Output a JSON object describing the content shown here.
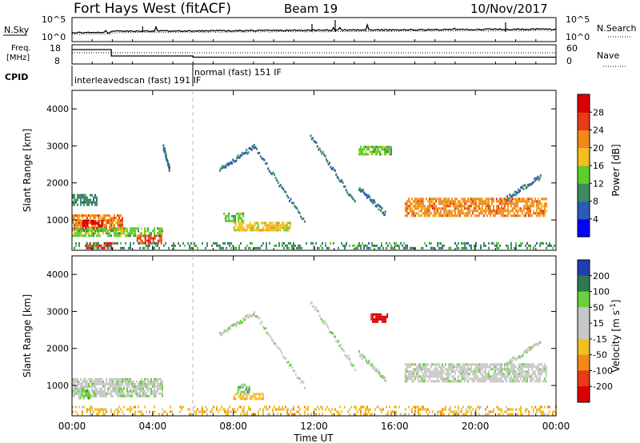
{
  "header": {
    "title": "Fort Hays West (fitACF)",
    "beam": "Beam 19",
    "date": "10/Nov/2017"
  },
  "top_panels": {
    "nsky_label": "N.Sky",
    "nsky_ticks": [
      "10^5",
      "10^0"
    ],
    "nsearch_label": "N.Search",
    "nsearch_ticks": [
      "10^5",
      "10^0"
    ],
    "freq_label_1": "Freq.",
    "freq_label_2": "[MHz]",
    "freq_ticks": [
      "18",
      "8"
    ],
    "nave_label": "Nave",
    "nave_ticks": [
      "60",
      "0"
    ],
    "cpid_label": "CPID",
    "cpid_entries": [
      {
        "text": "interleavedscan (fast)  191  IF",
        "start_hour": 0
      },
      {
        "text": "normal (fast)  151  IF",
        "start_hour": 6
      }
    ]
  },
  "x_axis": {
    "label": "Time UT",
    "ticks": [
      "00:00",
      "04:00",
      "08:00",
      "12:00",
      "16:00",
      "20:00",
      "00:00"
    ],
    "range_hours": [
      0,
      24
    ]
  },
  "chart_data": [
    {
      "type": "heatmap",
      "name": "power",
      "ylabel": "Slant Range [km]",
      "ylim": [
        180,
        4500
      ],
      "y_ticks": [
        "1000",
        "2000",
        "3000",
        "4000"
      ],
      "colorbar": {
        "label": "Power [dB]",
        "ticks": [
          "4",
          "8",
          "12",
          "16",
          "20",
          "24",
          "28"
        ],
        "range": [
          0,
          30
        ],
        "colors": [
          "#0000ff",
          "#2a5bb8",
          "#3d8a60",
          "#5ccf2a",
          "#f4c020",
          "#f08a1a",
          "#e83a14",
          "#d90000"
        ]
      },
      "regions": [
        {
          "t": [
            0.0,
            2.5
          ],
          "r": [
            750,
            1150
          ],
          "level": 5
        },
        {
          "t": [
            0.5,
            1.5
          ],
          "r": [
            800,
            1000
          ],
          "level": 7
        },
        {
          "t": [
            0.0,
            4.5
          ],
          "r": [
            600,
            800
          ],
          "level": 3
        },
        {
          "t": [
            0.7,
            2.0
          ],
          "r": [
            250,
            400
          ],
          "level": 7
        },
        {
          "t": [
            0.0,
            1.2
          ],
          "r": [
            1400,
            1700
          ],
          "level": 2
        },
        {
          "t": [
            3.2,
            4.4
          ],
          "r": [
            400,
            600
          ],
          "level": 6
        },
        {
          "t": [
            0.0,
            24.0
          ],
          "r": [
            250,
            400
          ],
          "level": 2
        },
        {
          "t": [
            8.0,
            10.8
          ],
          "r": [
            750,
            950
          ],
          "level": 4
        },
        {
          "t": [
            7.5,
            8.5
          ],
          "r": [
            1000,
            1200
          ],
          "level": 3
        },
        {
          "t": [
            16.5,
            23.5
          ],
          "r": [
            1100,
            1600
          ],
          "level": 5
        },
        {
          "t": [
            14.2,
            15.8
          ],
          "r": [
            2800,
            3000
          ],
          "level": 3
        }
      ],
      "arcs": [
        {
          "t0": 4.5,
          "r0": 3000,
          "t1": 4.8,
          "r1": 2400
        },
        {
          "t0": 7.3,
          "r0": 2400,
          "t1": 9.0,
          "r1": 3000
        },
        {
          "t0": 9.0,
          "r0": 3000,
          "t1": 11.5,
          "r1": 1000
        },
        {
          "t0": 11.8,
          "r0": 3300,
          "t1": 14.0,
          "r1": 1500
        },
        {
          "t0": 14.2,
          "r0": 1900,
          "t1": 15.5,
          "r1": 1200
        },
        {
          "t0": 21.5,
          "r0": 1600,
          "t1": 23.2,
          "r1": 2200
        }
      ]
    },
    {
      "type": "heatmap",
      "name": "velocity",
      "ylabel": "Slant Range [km]",
      "ylim": [
        180,
        4500
      ],
      "y_ticks": [
        "1000",
        "2000",
        "3000",
        "4000"
      ],
      "colorbar": {
        "label": "Velocity [m s^-1]",
        "ticks": [
          "200",
          "100",
          "50",
          "15",
          "-15",
          "-50",
          "-100",
          "-200"
        ],
        "range": [
          -250,
          250
        ],
        "colors": [
          "#1f3fb0",
          "#2e7a4f",
          "#6ad13e",
          "#c8c8c8",
          "#c8c8c8",
          "#f4c020",
          "#f08a1a",
          "#e83a14",
          "#d90000"
        ]
      },
      "regions": [
        {
          "t": [
            0.0,
            4.5
          ],
          "r": [
            700,
            1200
          ],
          "level": 3
        },
        {
          "t": [
            0.3,
            0.9
          ],
          "r": [
            650,
            950
          ],
          "level": 2
        },
        {
          "t": [
            0.0,
            24.0
          ],
          "r": [
            250,
            450
          ],
          "level": 5
        },
        {
          "t": [
            8.0,
            9.5
          ],
          "r": [
            650,
            800
          ],
          "level": 5
        },
        {
          "t": [
            8.2,
            8.8
          ],
          "r": [
            850,
            1050
          ],
          "level": 2
        },
        {
          "t": [
            16.5,
            23.5
          ],
          "r": [
            1100,
            1600
          ],
          "level": 3
        },
        {
          "t": [
            14.8,
            15.6
          ],
          "r": [
            2750,
            2950
          ],
          "level": 8
        }
      ],
      "arcs": [
        {
          "t0": 7.3,
          "r0": 2400,
          "t1": 9.0,
          "r1": 3000
        },
        {
          "t0": 9.0,
          "r0": 3000,
          "t1": 11.5,
          "r1": 1000
        },
        {
          "t0": 11.8,
          "r0": 3300,
          "t1": 14.0,
          "r1": 1500
        },
        {
          "t0": 14.2,
          "r0": 1900,
          "t1": 15.5,
          "r1": 1200
        },
        {
          "t0": 21.5,
          "r0": 1600,
          "t1": 23.2,
          "r1": 2200
        }
      ]
    }
  ]
}
